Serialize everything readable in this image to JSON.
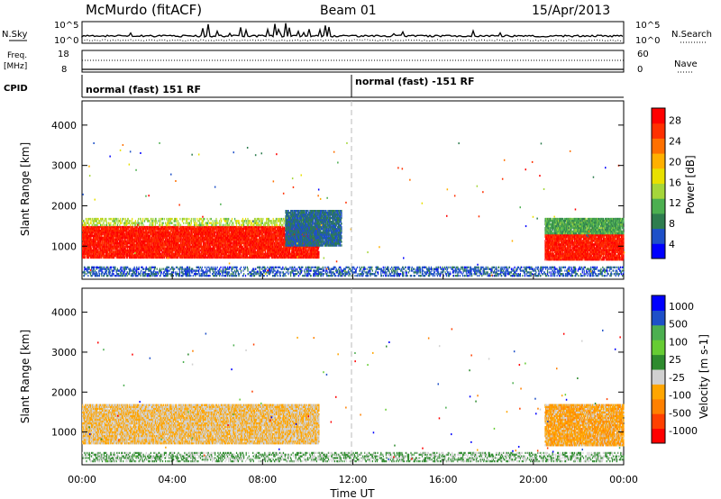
{
  "header": {
    "title": "McMurdo (fitACF)",
    "beam": "Beam 01",
    "date": "15/Apr/2013"
  },
  "top_panels": {
    "nsky_label": "N.Sky",
    "nsearch_label": "N.Search",
    "nsky_ticks": [
      "10^5",
      "10^0"
    ],
    "nsearch_ticks": [
      "10^5",
      "10^0"
    ],
    "freq_label_1": "Freq.",
    "freq_label_2": "[MHz]",
    "freq_ticks": [
      "18",
      "8"
    ],
    "nave_ticks": [
      "60",
      "0"
    ],
    "nave_label": "Nave",
    "cpid_label": "CPID",
    "cpid_segments": [
      "normal (fast) 151 RF",
      "normal (fast) -151 RF"
    ]
  },
  "colors": {
    "power": [
      "#0000ff",
      "#1e50c8",
      "#2e7d4f",
      "#4caf50",
      "#a5d63a",
      "#e8e000",
      "#ffb000",
      "#ff7000",
      "#ff3000",
      "#ff0000"
    ],
    "velocity": [
      "#ff0000",
      "#ff4000",
      "#ff8000",
      "#ffa500",
      "#d0d0d0",
      "#2e8b2e",
      "#66cc33",
      "#4caf50",
      "#1e50c8",
      "#0000ff"
    ]
  },
  "chart_data": [
    {
      "type": "heatmap",
      "title": "Power",
      "ylabel": "Slant Range [km]",
      "colorbar_label": "Power [dB]",
      "colorbar_ticks": [
        "28",
        "24",
        "20",
        "16",
        "12",
        "8",
        "4"
      ],
      "colorbar_range": [
        0,
        30
      ],
      "x_ticks": [
        "00:00",
        "04:00",
        "08:00",
        "12:00",
        "16:00",
        "20:00",
        "00:00"
      ],
      "y_ticks": [
        "4000",
        "3000",
        "2000",
        "1000"
      ],
      "ylim": [
        180,
        4600
      ],
      "scatter_bands": [
        {
          "t0": 0.0,
          "t1": 10.5,
          "r0": 700,
          "r1": 1500,
          "value": 27
        },
        {
          "t0": 0.0,
          "t1": 10.5,
          "r0": 1500,
          "r1": 1700,
          "value": 14
        },
        {
          "t0": 9.0,
          "t1": 11.5,
          "r0": 1000,
          "r1": 1900,
          "value": 6
        },
        {
          "t0": 20.5,
          "t1": 24.0,
          "r0": 650,
          "r1": 1300,
          "value": 27
        },
        {
          "t0": 20.5,
          "t1": 24.0,
          "r0": 1300,
          "r1": 1700,
          "value": 10
        },
        {
          "t0": 0.0,
          "t1": 24.0,
          "r0": 250,
          "r1": 500,
          "value": 5
        }
      ]
    },
    {
      "type": "heatmap",
      "title": "Velocity",
      "ylabel": "Slant Range [km]",
      "colorbar_label": "Velocity [m s-1]",
      "colorbar_ticks": [
        "1000",
        "500",
        "100",
        "25",
        "-25",
        "-100",
        "-500",
        "-1000"
      ],
      "colorbar_range": [
        -1000,
        1000
      ],
      "x_ticks": [
        "00:00",
        "04:00",
        "08:00",
        "12:00",
        "16:00",
        "20:00",
        "00:00"
      ],
      "xlabel": "Time UT",
      "y_ticks": [
        "4000",
        "3000",
        "2000",
        "1000"
      ],
      "ylim": [
        180,
        4600
      ],
      "scatter_bands": [
        {
          "t0": 0.0,
          "t1": 10.5,
          "r0": 700,
          "r1": 1700,
          "value": -200
        },
        {
          "t0": 20.5,
          "t1": 24.0,
          "r0": 650,
          "r1": 1700,
          "value": -300
        },
        {
          "t0": 0.0,
          "t1": 24.0,
          "r0": 250,
          "r1": 500,
          "value": 20
        }
      ]
    }
  ]
}
